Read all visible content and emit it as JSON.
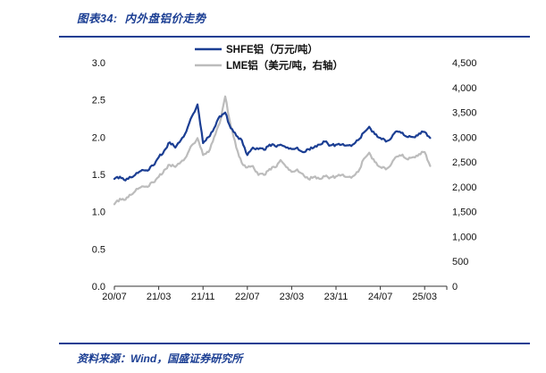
{
  "page": {
    "title": "图表34:  内外盘铝价走势",
    "source": "资料来源：Wind，国盛证券研究所",
    "accent_color": "#1b3e93"
  },
  "chart_data": {
    "type": "line",
    "title": "内外盘铝价走势",
    "x_start": "2020/07",
    "x_end": "2025/04",
    "x_tick_labels": [
      "20/07",
      "21/03",
      "21/11",
      "22/07",
      "23/03",
      "23/11",
      "24/07",
      "25/03"
    ],
    "x_tick_indices": [
      0,
      8,
      16,
      24,
      32,
      40,
      48,
      56
    ],
    "left_axis": {
      "min": 0,
      "max": 3.0,
      "ticks": [
        "0.0",
        "0.5",
        "1.0",
        "1.5",
        "2.0",
        "2.5",
        "3.0"
      ]
    },
    "right_axis": {
      "min": 0,
      "max": 4500,
      "ticks": [
        "0",
        "500",
        "1,000",
        "1,500",
        "2,000",
        "2,500",
        "3,000",
        "3,500",
        "4,000",
        "4,500"
      ]
    },
    "grid": false,
    "legend_position": "top",
    "series": [
      {
        "name": "SHFE铝（万元/吨）",
        "axis": "left",
        "color": "#1b3e93",
        "values": [
          1.44,
          1.47,
          1.42,
          1.46,
          1.52,
          1.56,
          1.55,
          1.62,
          1.73,
          1.82,
          1.93,
          1.86,
          1.96,
          2.08,
          2.28,
          2.44,
          1.92,
          2.0,
          2.12,
          2.28,
          2.33,
          2.12,
          2.02,
          1.96,
          1.76,
          1.86,
          1.84,
          1.83,
          1.9,
          1.88,
          1.9,
          1.86,
          1.84,
          1.86,
          1.8,
          1.84,
          1.86,
          1.9,
          1.94,
          1.89,
          1.9,
          1.9,
          1.89,
          1.9,
          1.96,
          2.06,
          2.14,
          2.04,
          1.99,
          1.94,
          1.99,
          2.08,
          2.06,
          2.0,
          2.0,
          2.05,
          2.07,
          1.99
        ]
      },
      {
        "name": "LME铝（美元/吨，右轴）",
        "axis": "right",
        "color": "#bcbcbc",
        "values": [
          1650,
          1760,
          1740,
          1840,
          1960,
          2010,
          2000,
          2090,
          2200,
          2340,
          2440,
          2400,
          2500,
          2610,
          2840,
          2980,
          2640,
          2700,
          3000,
          3280,
          3820,
          3230,
          2790,
          2480,
          2390,
          2420,
          2240,
          2240,
          2360,
          2390,
          2540,
          2400,
          2300,
          2350,
          2260,
          2160,
          2200,
          2160,
          2210,
          2190,
          2210,
          2240,
          2200,
          2210,
          2300,
          2560,
          2690,
          2500,
          2400,
          2350,
          2460,
          2610,
          2650,
          2550,
          2600,
          2660,
          2700,
          2420
        ]
      }
    ]
  }
}
